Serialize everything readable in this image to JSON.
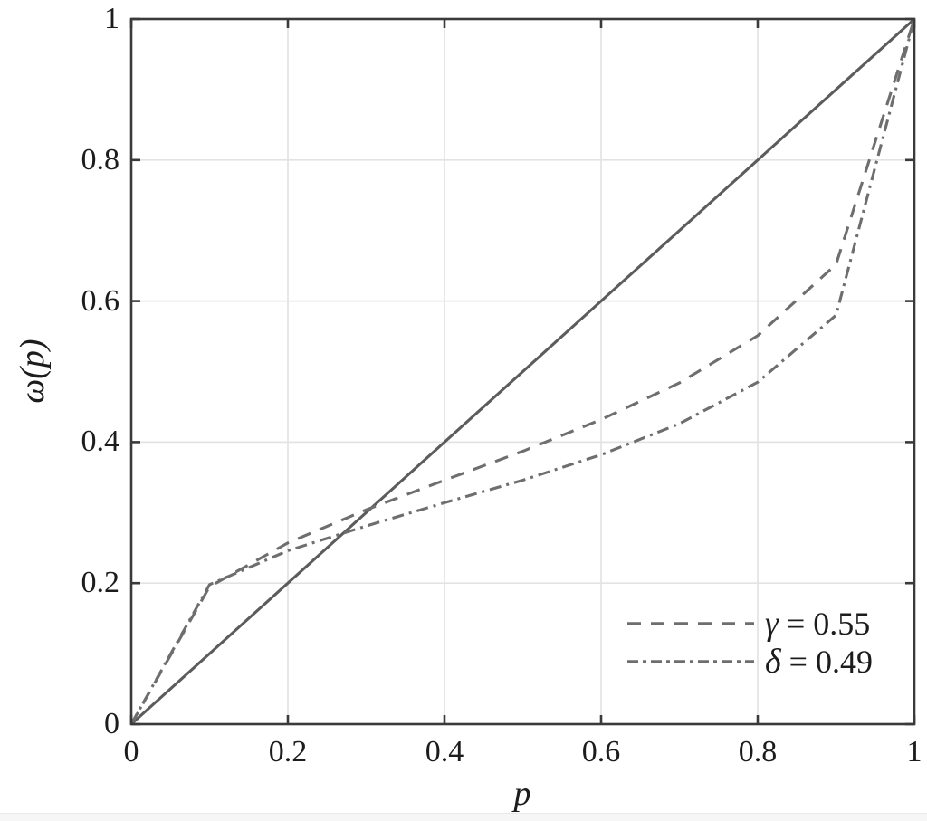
{
  "chart_data": {
    "type": "line",
    "title": "",
    "xlabel": "p",
    "ylabel": "ω(p)",
    "xlim": [
      0,
      1
    ],
    "ylim": [
      0,
      1
    ],
    "grid": true,
    "legend_position": "lower-right",
    "legend_box": false,
    "ticks": {
      "values": [
        0,
        0.2,
        0.4,
        0.6,
        0.8,
        1
      ],
      "labels": [
        "0",
        "0.2",
        "0.4",
        "0.6",
        "0.8",
        "1"
      ]
    },
    "series": [
      {
        "name": "identity-line",
        "label": "",
        "style": "solid",
        "color": "#5c5c5c",
        "x": [
          0,
          1
        ],
        "y": [
          0,
          1
        ]
      },
      {
        "name": "weighting-gamma",
        "label": "γ = 0.55",
        "style": "dashed",
        "color": "#6e6e6e",
        "x": [
          0,
          0.1,
          0.2,
          0.3,
          0.4,
          0.5,
          0.6,
          0.7,
          0.8,
          0.9,
          1
        ],
        "y": [
          0,
          0.195,
          0.257,
          0.304,
          0.346,
          0.387,
          0.432,
          0.484,
          0.551,
          0.652,
          1
        ]
      },
      {
        "name": "weighting-delta",
        "label": "δ = 0.49",
        "style": "dashdot",
        "color": "#6e6e6e",
        "x": [
          0,
          0.1,
          0.2,
          0.3,
          0.4,
          0.5,
          0.6,
          0.7,
          0.8,
          0.9,
          1
        ],
        "y": [
          0,
          0.198,
          0.246,
          0.281,
          0.314,
          0.346,
          0.382,
          0.426,
          0.485,
          0.58,
          1
        ]
      }
    ],
    "legend": {
      "entries": [
        {
          "symbol": "γ",
          "rest": "= 0.55"
        },
        {
          "symbol": "δ",
          "rest": "= 0.49"
        }
      ]
    }
  },
  "colors": {
    "background": "#ffffff",
    "axis": "#3a3a3a",
    "grid": "#e3e3e3",
    "text": "#1c1c1c",
    "curve": "#6e6e6e",
    "identity": "#5c5c5c"
  }
}
